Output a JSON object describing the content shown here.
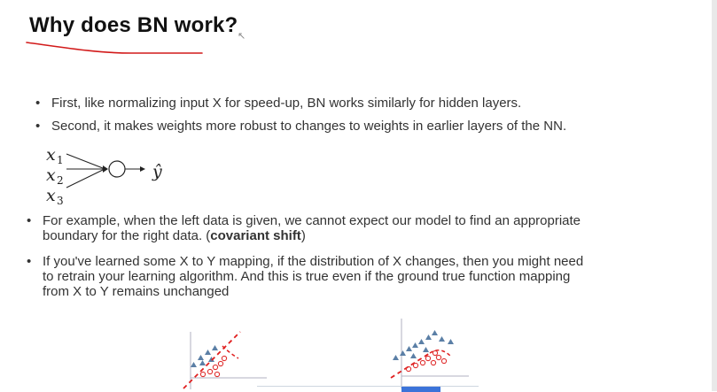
{
  "slide": {
    "title": "Why does BN work?",
    "bullets": [
      "First, like normalizing input X for speed-up, BN works similarly for hidden layers.",
      "Second, it makes weights more robust to changes to weights in earlier layers of the NN."
    ],
    "bullet3_line1": "For example, when the left data is given, we cannot expect our model to find an appropriate",
    "bullet3_line2_pre": "boundary for the right data. (",
    "bullet3_bold": "covariant shift",
    "bullet3_line2_post": ")",
    "bullet4_lines": [
      "If you've learned some X to Y mapping,  if the distribution of X changes,  then you might need",
      "to retrain your learning algorithm.  And this is true even if the ground true function mapping",
      "from X to Y remains unchanged"
    ],
    "bullet_symbol": "•"
  },
  "network": {
    "inputs": [
      "x",
      "x",
      "x"
    ],
    "subscripts": [
      "1",
      "2",
      "3"
    ],
    "output": "ŷ"
  },
  "colors": {
    "triangle": "#5b7fa6",
    "boundary": "#e02020",
    "circle": "#e03030",
    "axis": "#b0b0c0",
    "underline": "#d21a1a"
  }
}
